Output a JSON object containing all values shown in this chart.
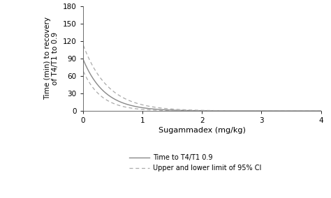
{
  "xlabel": "Sugammadex (mg/kg)",
  "ylabel": "Time (min) to recovery\nof T4/T1 to 0.9",
  "xlim": [
    0,
    4
  ],
  "ylim": [
    0,
    180
  ],
  "yticks": [
    0,
    30,
    60,
    90,
    120,
    150,
    180
  ],
  "xticks": [
    0,
    1,
    2,
    3,
    4
  ],
  "curve_color": "#888888",
  "ci_color": "#aaaaaa",
  "background_color": "#ffffff",
  "legend_line_label": "Time to T4/T1 0.9",
  "legend_ci_label": "Upper and lower limit of 95% CI",
  "A": 90,
  "k": 2.8,
  "A_upper": 115,
  "k_upper": 2.4,
  "A_lower": 70,
  "k_lower": 3.3,
  "x_start": 0.01
}
